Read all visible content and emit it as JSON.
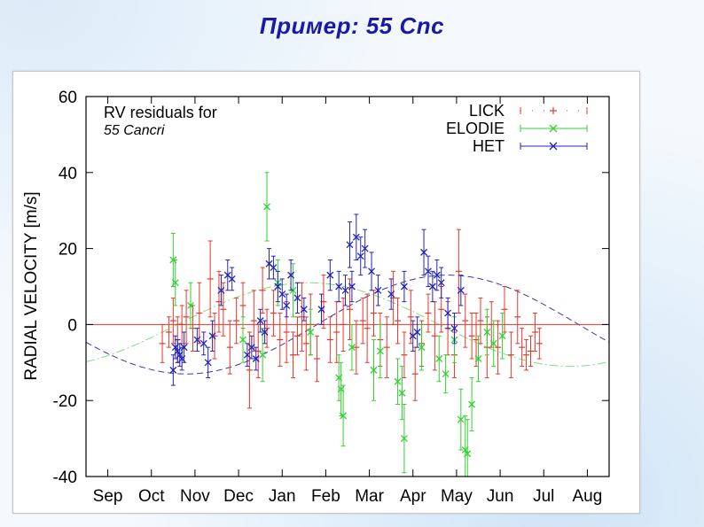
{
  "slide": {
    "title": "Пример: 55 Cnc"
  },
  "chart_data": {
    "type": "scatter",
    "title": "RV residuals for",
    "subtitle": "55 Cancri",
    "ylabel": "RADIAL VELOCITY  [m/s]",
    "xlabel": "",
    "ylim": [
      -40,
      60
    ],
    "xlim": [
      0,
      12
    ],
    "x_unit": "month of year (tick at center of month band)",
    "x_tick_labels": [
      "Sep",
      "Oct",
      "Nov",
      "Dec",
      "Jan",
      "Feb",
      "Mar",
      "Apr",
      "May",
      "Jun",
      "Jul",
      "Aug"
    ],
    "x_tick_positions": [
      1,
      2,
      3,
      4,
      5,
      6,
      7,
      8,
      9,
      10,
      11,
      12
    ],
    "y_ticks": [
      -40,
      -20,
      0,
      20,
      40,
      60
    ],
    "grid": false,
    "legend": "top-right",
    "zero_line": {
      "y": 0,
      "color": "#e8372a"
    },
    "model_curves": [
      {
        "series": "ELODIE",
        "style": "dash-dot",
        "color": "#7ee07e",
        "amplitude": 11,
        "phase_month": 2.1,
        "period_month": 12
      },
      {
        "series": "HET",
        "style": "dashed",
        "color": "#3a3aa8",
        "amplitude": 13,
        "phase_month": 5.3,
        "period_month": 12
      }
    ],
    "series": [
      {
        "name": "LICK",
        "color": "#e8372a",
        "marker": "plus",
        "points": [
          [
            1.75,
            -5,
            5
          ],
          [
            1.9,
            -2,
            4
          ],
          [
            2.0,
            1,
            6
          ],
          [
            2.1,
            -4,
            6
          ],
          [
            2.2,
            0,
            5
          ],
          [
            2.3,
            2,
            7
          ],
          [
            2.45,
            -1,
            6
          ],
          [
            2.6,
            3,
            8
          ],
          [
            2.85,
            12,
            10
          ],
          [
            2.95,
            -3,
            6
          ],
          [
            3.05,
            6,
            8
          ],
          [
            3.15,
            4,
            7
          ],
          [
            3.3,
            -6,
            7
          ],
          [
            3.45,
            1,
            6
          ],
          [
            3.6,
            5,
            6
          ],
          [
            3.75,
            -12,
            10
          ],
          [
            3.85,
            1,
            8
          ],
          [
            3.95,
            -7,
            7
          ],
          [
            4.05,
            9,
            6
          ],
          [
            4.15,
            -1,
            5
          ],
          [
            4.3,
            3,
            6
          ],
          [
            4.45,
            -4,
            7
          ],
          [
            4.6,
            -2,
            8
          ],
          [
            4.75,
            -8,
            6
          ],
          [
            4.85,
            -3,
            5
          ],
          [
            4.95,
            2,
            9
          ],
          [
            5.05,
            -5,
            7
          ],
          [
            5.15,
            0,
            8
          ],
          [
            5.3,
            -9,
            6
          ],
          [
            5.45,
            6,
            7
          ],
          [
            5.6,
            -4,
            6
          ],
          [
            5.75,
            -2,
            8
          ],
          [
            5.9,
            0,
            7
          ],
          [
            6.05,
            4,
            8
          ],
          [
            6.2,
            -6,
            7
          ],
          [
            6.35,
            1,
            6
          ],
          [
            6.45,
            -1,
            9
          ],
          [
            6.6,
            3,
            6
          ],
          [
            6.75,
            -4,
            7
          ],
          [
            6.9,
            -6,
            8
          ],
          [
            7.05,
            7,
            7
          ],
          [
            7.15,
            1,
            6
          ],
          [
            7.3,
            -8,
            6
          ],
          [
            7.45,
            2,
            7
          ],
          [
            7.55,
            -13,
            7
          ],
          [
            7.7,
            -5,
            6
          ],
          [
            7.85,
            3,
            5
          ],
          [
            8.0,
            -3,
            9
          ],
          [
            8.15,
            4,
            6
          ],
          [
            8.3,
            -1,
            7
          ],
          [
            8.45,
            -8,
            6
          ],
          [
            8.55,
            14,
            11
          ],
          [
            8.7,
            1,
            7
          ],
          [
            8.85,
            -3,
            6
          ],
          [
            8.95,
            -4,
            7
          ],
          [
            9.05,
            1,
            6
          ],
          [
            9.2,
            -6,
            8
          ],
          [
            9.3,
            0,
            6
          ],
          [
            9.45,
            -6,
            7
          ],
          [
            9.6,
            4,
            6
          ],
          [
            9.75,
            -8,
            6
          ],
          [
            9.9,
            2,
            7
          ],
          [
            10.0,
            -6,
            5
          ],
          [
            10.1,
            -8,
            4
          ],
          [
            10.2,
            -7,
            4
          ],
          [
            10.3,
            -2,
            5
          ],
          [
            10.4,
            -5,
            4
          ]
        ]
      },
      {
        "name": "ELODIE",
        "color": "#33d133",
        "marker": "cross",
        "points": [
          [
            2.0,
            17,
            7
          ],
          [
            2.05,
            11,
            6
          ],
          [
            2.4,
            5,
            6
          ],
          [
            3.6,
            -4,
            6
          ],
          [
            4.05,
            -8,
            7
          ],
          [
            4.15,
            31,
            9
          ],
          [
            4.4,
            11,
            6
          ],
          [
            4.75,
            9,
            7
          ],
          [
            5.15,
            -2,
            6
          ],
          [
            5.8,
            -14,
            6
          ],
          [
            5.85,
            -17,
            7
          ],
          [
            5.9,
            -24,
            8
          ],
          [
            6.1,
            -6,
            6
          ],
          [
            6.6,
            -12,
            8
          ],
          [
            6.75,
            -7,
            7
          ],
          [
            7.15,
            -15,
            6
          ],
          [
            7.25,
            -18,
            7
          ],
          [
            7.3,
            -30,
            9
          ],
          [
            7.7,
            -6,
            6
          ],
          [
            8.1,
            -9,
            6
          ],
          [
            8.25,
            -13,
            5
          ],
          [
            8.45,
            -4,
            6
          ],
          [
            8.6,
            -25,
            8
          ],
          [
            8.7,
            -33,
            9
          ],
          [
            8.75,
            -34,
            9
          ],
          [
            8.85,
            -21,
            7
          ],
          [
            9.0,
            -9,
            6
          ],
          [
            9.2,
            -2,
            6
          ],
          [
            9.35,
            -5,
            6
          ],
          [
            9.55,
            -3,
            6
          ]
        ]
      },
      {
        "name": "HET",
        "color": "#2323b8",
        "marker": "cross",
        "points": [
          [
            2.0,
            -12,
            4
          ],
          [
            2.05,
            -6,
            3
          ],
          [
            2.1,
            -7,
            3
          ],
          [
            2.15,
            -8,
            3
          ],
          [
            2.2,
            -9,
            3
          ],
          [
            2.25,
            -6,
            4
          ],
          [
            2.55,
            -4,
            3
          ],
          [
            2.7,
            -5,
            3
          ],
          [
            2.8,
            -10,
            4
          ],
          [
            2.9,
            -3,
            4
          ],
          [
            3.1,
            9,
            4
          ],
          [
            3.25,
            13,
            4
          ],
          [
            3.35,
            12,
            3
          ],
          [
            3.7,
            -8,
            3
          ],
          [
            3.8,
            -6,
            3
          ],
          [
            3.9,
            -9,
            3
          ],
          [
            4.0,
            1,
            3
          ],
          [
            4.1,
            -2,
            3
          ],
          [
            4.2,
            16,
            4
          ],
          [
            4.3,
            15,
            3
          ],
          [
            4.4,
            10,
            4
          ],
          [
            4.5,
            8,
            4
          ],
          [
            4.6,
            5,
            3
          ],
          [
            4.7,
            13,
            4
          ],
          [
            4.85,
            7,
            4
          ],
          [
            5.0,
            4,
            3
          ],
          [
            5.4,
            4,
            4
          ],
          [
            5.6,
            13,
            4
          ],
          [
            5.8,
            10,
            4
          ],
          [
            5.95,
            9,
            4
          ],
          [
            6.05,
            21,
            6
          ],
          [
            6.1,
            10,
            4
          ],
          [
            6.2,
            23,
            6
          ],
          [
            6.3,
            18,
            5
          ],
          [
            6.4,
            20,
            5
          ],
          [
            6.55,
            14,
            5
          ],
          [
            6.7,
            9,
            4
          ],
          [
            7.0,
            8,
            4
          ],
          [
            7.3,
            10,
            4
          ],
          [
            7.5,
            -3,
            4
          ],
          [
            7.6,
            -2,
            4
          ],
          [
            7.75,
            19,
            6
          ],
          [
            7.85,
            14,
            4
          ],
          [
            7.95,
            10,
            4
          ],
          [
            8.05,
            13,
            4
          ],
          [
            8.15,
            11,
            4
          ],
          [
            8.3,
            3,
            4
          ],
          [
            8.45,
            -1,
            4
          ],
          [
            8.6,
            9,
            4
          ]
        ]
      }
    ]
  }
}
